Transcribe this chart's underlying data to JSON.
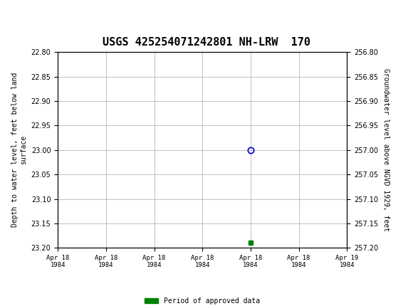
{
  "title": "USGS 425254071242801 NH-LRW  170",
  "left_ylabel": "Depth to water level, feet below land\nsurface",
  "right_ylabel": "Groundwater level above NGVD 1929, feet",
  "ylim_left": [
    22.8,
    23.2
  ],
  "ylim_right": [
    256.8,
    257.2
  ],
  "yticks_left": [
    22.8,
    22.85,
    22.9,
    22.95,
    23.0,
    23.05,
    23.1,
    23.15,
    23.2
  ],
  "yticks_right": [
    256.8,
    256.85,
    256.9,
    256.95,
    257.0,
    257.05,
    257.1,
    257.15,
    257.2
  ],
  "x_data_open": 4.0,
  "y_data_open": 23.0,
  "x_data_green": 4.0,
  "y_data_green": 23.19,
  "x_min": 0,
  "x_max": 6,
  "xtick_labels": [
    "Apr 18\n1984",
    "Apr 18\n1984",
    "Apr 18\n1984",
    "Apr 18\n1984",
    "Apr 18\n1984",
    "Apr 18\n1984",
    "Apr 19\n1984"
  ],
  "grid_color": "#c0c0c0",
  "open_circle_color": "#0000cc",
  "green_square_color": "#008000",
  "background_color": "#ffffff",
  "header_color": "#006644",
  "header_text_color": "#ffffff",
  "legend_label": "Period of approved data",
  "legend_color": "#008000",
  "font_color": "#000000"
}
